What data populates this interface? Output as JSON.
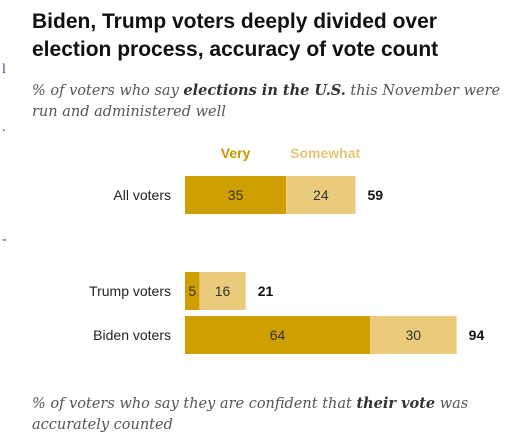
{
  "title": "Biden, Trump voters deeply divided over election process, accuracy of vote count",
  "subtitle1": {
    "before": "% of voters who say ",
    "bold": "elections in the U.S.",
    "after": " this November were run and administered well"
  },
  "subtitle2": {
    "before": "% of voters who say they are confident that ",
    "bold": "their vote",
    "after": " was accurately counted"
  },
  "colors": {
    "very": "#CF9E00",
    "somewhat": "#EACB7C",
    "very_label": "#C99A00",
    "somewhat_label": "#E3C679"
  },
  "chart_data": {
    "type": "bar",
    "orientation": "horizontal",
    "stacked": true,
    "categories": [
      "All voters",
      "Trump voters",
      "Biden voters"
    ],
    "series": [
      {
        "name": "Very",
        "values": [
          35,
          5,
          64
        ]
      },
      {
        "name": "Somewhat",
        "values": [
          24,
          16,
          30
        ]
      }
    ],
    "totals": [
      59,
      21,
      94
    ],
    "legend_position": "top",
    "grid": false
  }
}
